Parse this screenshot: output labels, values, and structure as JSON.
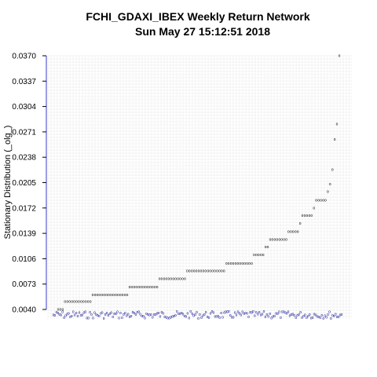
{
  "chart_data": {
    "type": "scatter",
    "title": "FCHI_GDAXI_IBEX  Weekly Return Network",
    "subtitle": "Sun May 27 15:12:51 2018",
    "xlabel": "",
    "ylabel": "Stationary Distribution (_olg_)",
    "ylim": [
      0.004,
      0.037
    ],
    "yticks": [
      "0.0370",
      "0.0337",
      "0.0304",
      "0.0271",
      "0.0238",
      "0.0205",
      "0.0172",
      "0.0139",
      "0.0106",
      "0.0073",
      "0.0040"
    ],
    "grid": true,
    "levels": [
      {
        "y": 0.004,
        "count": 3
      },
      {
        "y": 0.005,
        "count": 12
      },
      {
        "y": 0.0059,
        "count": 16
      },
      {
        "y": 0.0069,
        "count": 13
      },
      {
        "y": 0.008,
        "count": 12
      },
      {
        "y": 0.009,
        "count": 17
      },
      {
        "y": 0.01,
        "count": 12
      },
      {
        "y": 0.0111,
        "count": 5
      },
      {
        "y": 0.0121,
        "count": 2
      },
      {
        "y": 0.0131,
        "count": 8
      },
      {
        "y": 0.0141,
        "count": 5
      },
      {
        "y": 0.0152,
        "count": 1
      },
      {
        "y": 0.0162,
        "count": 5
      },
      {
        "y": 0.0172,
        "count": 1
      },
      {
        "y": 0.0182,
        "count": 5
      },
      {
        "y": 0.0193,
        "count": 1
      },
      {
        "y": 0.0203,
        "count": 1
      },
      {
        "y": 0.0222,
        "count": 1
      },
      {
        "y": 0.0261,
        "count": 1
      },
      {
        "y": 0.0281,
        "count": 1
      },
      {
        "y": 0.037,
        "count": 1
      }
    ],
    "colors": {
      "marks": "#000000",
      "rug": "#00008b",
      "axis": "#3a3acc",
      "grid": "#d6d6d6"
    }
  }
}
